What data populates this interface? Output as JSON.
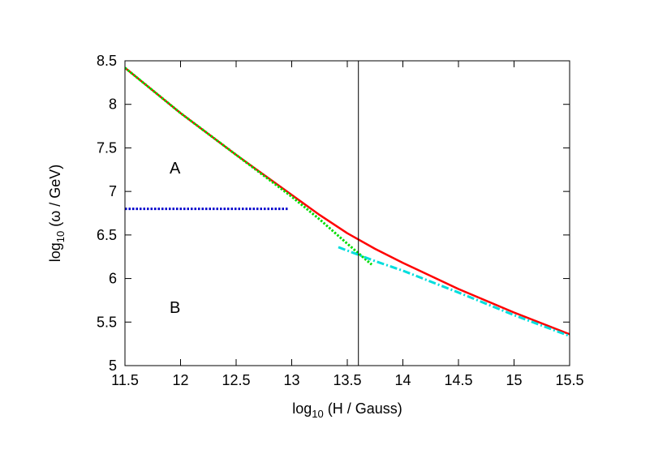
{
  "chart_data": {
    "type": "line",
    "title": "",
    "xlabel": {
      "prefix": "log",
      "sub": "10",
      "rest": " (H / Gauss)"
    },
    "ylabel": {
      "prefix": "log",
      "sub": "10",
      "rest": " (ω / GeV)"
    },
    "xlim": [
      11.5,
      15.5
    ],
    "ylim": [
      5,
      8.5
    ],
    "xticks": [
      11.5,
      12,
      12.5,
      13,
      13.5,
      14,
      14.5,
      15,
      15.5
    ],
    "xtick_labels": [
      "11.5",
      "12",
      "12.5",
      "13",
      "13.5",
      "14",
      "14.5",
      "15",
      "15.5"
    ],
    "yticks": [
      5,
      5.5,
      6,
      6.5,
      7,
      7.5,
      8,
      8.5
    ],
    "ytick_labels": [
      "5",
      "5.5",
      "6",
      "6.5",
      "7",
      "7.5",
      "8",
      "8.5"
    ],
    "grid": false,
    "legend": "none",
    "vertical_line": {
      "x": 13.6,
      "color": "#000000"
    },
    "annotations": [
      {
        "text": "A",
        "x": 11.95,
        "y": 7.27
      },
      {
        "text": "B",
        "x": 11.95,
        "y": 5.67
      }
    ],
    "series": [
      {
        "color": "#ff0000",
        "style": "solid",
        "x": [
          11.5,
          12.0,
          12.5,
          13.0,
          13.25,
          13.5,
          13.75,
          14.0,
          14.5,
          15.0,
          15.5
        ],
        "y": [
          8.42,
          7.9,
          7.42,
          6.96,
          6.73,
          6.52,
          6.34,
          6.18,
          5.88,
          5.61,
          5.36
        ]
      },
      {
        "color": "#00dd00",
        "style": "dotted",
        "x": [
          11.5,
          12.0,
          12.5,
          13.0,
          13.25,
          13.5,
          13.72
        ],
        "y": [
          8.42,
          7.9,
          7.42,
          6.94,
          6.68,
          6.4,
          6.16
        ]
      },
      {
        "color": "#0000cc",
        "style": "dotted",
        "x": [
          11.5,
          12.97
        ],
        "y": [
          6.8,
          6.8
        ]
      },
      {
        "color": "#00dddd",
        "style": "dashdot",
        "x": [
          13.42,
          13.75,
          14.0,
          14.5,
          15.0,
          15.5
        ],
        "y": [
          6.36,
          6.2,
          6.09,
          5.84,
          5.58,
          5.34
        ]
      }
    ]
  }
}
